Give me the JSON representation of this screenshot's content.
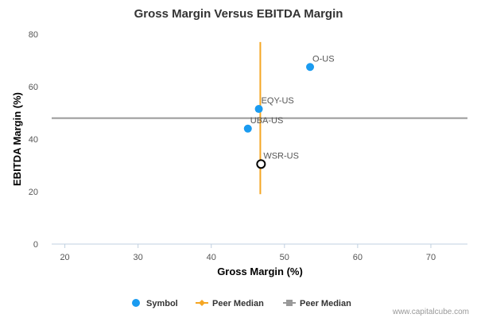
{
  "chart_data": {
    "type": "scatter",
    "title": "Gross Margin Versus EBITDA Margin",
    "xlabel": "Gross Margin (%)",
    "ylabel": "EBITDA Margin (%)",
    "xlim": [
      18.2,
      75
    ],
    "ylim": [
      0,
      80
    ],
    "xticks": [
      20,
      30,
      40,
      50,
      60,
      70
    ],
    "yticks": [
      0,
      20,
      40,
      60,
      80
    ],
    "grid": false,
    "points": [
      {
        "label": "O-US",
        "x": 53.5,
        "y": 67.5,
        "style": "filled"
      },
      {
        "label": "EQY-US",
        "x": 46.5,
        "y": 51.5,
        "style": "filled"
      },
      {
        "label": "UBA-US",
        "x": 45.0,
        "y": 44.0,
        "style": "filled"
      },
      {
        "label": "WSR-US",
        "x": 46.8,
        "y": 30.5,
        "style": "hollow"
      }
    ],
    "peer_median_x": {
      "value": 46.7,
      "y_range": [
        19,
        77
      ]
    },
    "peer_median_y": {
      "value": 48.0
    },
    "legend": [
      {
        "label": "Symbol",
        "marker": "circle",
        "color": "#1a9bf0"
      },
      {
        "label": "Peer Median",
        "marker": "diamond-line",
        "color": "#f5a623"
      },
      {
        "label": "Peer Median",
        "marker": "square-line",
        "color": "#999999"
      }
    ],
    "legend_position": "bottom",
    "colors": {
      "point": "#1a9bf0",
      "median_x": "#f5a623",
      "median_y": "#999999",
      "axis": "#c0d0e0"
    }
  },
  "credit": "www.capitalcube.com"
}
